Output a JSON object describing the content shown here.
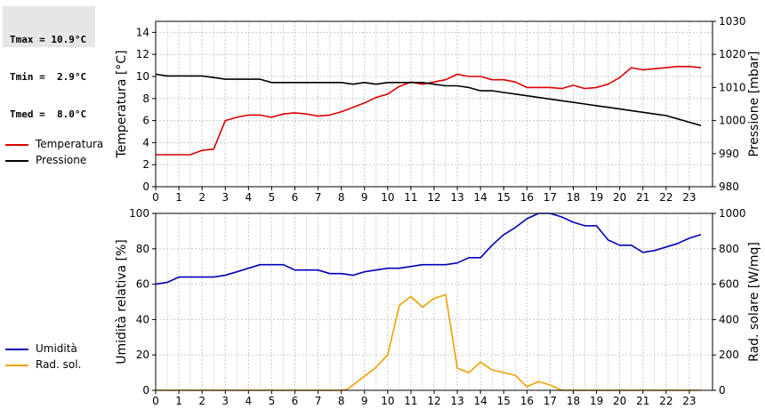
{
  "stats": {
    "tmax": "Tmax = 10.9°C",
    "tmin": "Tmin =  2.9°C",
    "tmed": "Tmed =  8.0°C"
  },
  "legend_top": [
    {
      "label": "Temperatura",
      "color": "#dd0000"
    },
    {
      "label": "Pressione",
      "color": "#000000"
    }
  ],
  "legend_bottom": [
    {
      "label": "Umidità",
      "color": "#0000bb"
    },
    {
      "label": "Rad. sol.",
      "color": "#f0a000"
    }
  ],
  "chart_data": [
    {
      "type": "line",
      "xlim": [
        0,
        24
      ],
      "x_ticks": [
        "0",
        "1",
        "2",
        "3",
        "4",
        "5",
        "6",
        "7",
        "8",
        "9",
        "10",
        "11",
        "12",
        "13",
        "14",
        "15",
        "16",
        "17",
        "18",
        "19",
        "20",
        "21",
        "22",
        "23"
      ],
      "ylabel": "Temperatura [°C]",
      "ylim": [
        0,
        15
      ],
      "y_ticks": [
        "0",
        "2",
        "4",
        "6",
        "8",
        "10",
        "12",
        "14"
      ],
      "y2label": "Pressione [mbar]",
      "y2lim": [
        980,
        1030
      ],
      "y2_ticks": [
        "980",
        "990",
        "1000",
        "1010",
        "1020",
        "1030"
      ],
      "grid": true,
      "series": [
        {
          "name": "Temperatura",
          "axis": "left",
          "color": "#dd0000",
          "x": [
            0,
            0.5,
            1,
            1.5,
            2,
            2.5,
            2.75,
            3,
            3.5,
            4,
            4.5,
            5,
            5.5,
            6,
            6.5,
            7,
            7.5,
            8,
            8.5,
            9,
            9.5,
            10,
            10.5,
            11,
            11.5,
            12,
            12.5,
            13,
            13.5,
            14,
            14.5,
            15,
            15.5,
            16,
            16.5,
            17,
            17.5,
            18,
            18.5,
            19,
            19.5,
            20,
            20.5,
            21,
            21.5,
            22,
            22.5,
            23,
            23.5
          ],
          "values": [
            2.9,
            2.9,
            2.9,
            2.9,
            3.3,
            3.4,
            4.7,
            6.0,
            6.3,
            6.5,
            6.5,
            6.3,
            6.6,
            6.7,
            6.6,
            6.4,
            6.5,
            6.8,
            7.2,
            7.6,
            8.1,
            8.4,
            9.1,
            9.5,
            9.3,
            9.5,
            9.7,
            10.2,
            10.0,
            10.0,
            9.7,
            9.7,
            9.5,
            9.0,
            9.0,
            9.0,
            8.9,
            9.2,
            8.9,
            9.0,
            9.3,
            9.9,
            10.8,
            10.6,
            10.7,
            10.8,
            10.9,
            10.9,
            10.8
          ]
        },
        {
          "name": "Pressione",
          "axis": "right",
          "color": "#000000",
          "x": [
            0,
            0.5,
            1,
            1.5,
            2,
            2.5,
            3,
            3.5,
            4,
            4.5,
            5,
            5.5,
            6,
            6.5,
            7,
            7.5,
            8,
            8.5,
            9,
            9.5,
            10,
            10.5,
            11,
            11.5,
            12,
            12.5,
            13,
            13.5,
            14,
            14.5,
            15,
            15.5,
            16,
            16.5,
            17,
            17.5,
            18,
            18.5,
            19,
            19.5,
            20,
            20.5,
            21,
            21.5,
            22,
            22.5,
            23,
            23.5
          ],
          "values": [
            1014,
            1013.5,
            1013.5,
            1013.5,
            1013.5,
            1013,
            1012.5,
            1012.5,
            1012.5,
            1012.5,
            1011.5,
            1011.5,
            1011.5,
            1011.5,
            1011.5,
            1011.5,
            1011.5,
            1011,
            1011.5,
            1011,
            1011.5,
            1011.5,
            1011.5,
            1011.5,
            1011,
            1010.5,
            1010.5,
            1010,
            1009,
            1009,
            1008.5,
            1008,
            1007.5,
            1007,
            1006.5,
            1006,
            1005.5,
            1005,
            1004.5,
            1004,
            1003.5,
            1003,
            1002.5,
            1002,
            1001.5,
            1000.5,
            999.5,
            998.5
          ]
        }
      ]
    },
    {
      "type": "line",
      "xlim": [
        0,
        24
      ],
      "x_ticks": [
        "0",
        "1",
        "2",
        "3",
        "4",
        "5",
        "6",
        "7",
        "8",
        "9",
        "10",
        "11",
        "12",
        "13",
        "14",
        "15",
        "16",
        "17",
        "18",
        "19",
        "20",
        "21",
        "22",
        "23"
      ],
      "ylabel": "Umidità relativa [%]",
      "ylim": [
        0,
        100
      ],
      "y_ticks": [
        "0",
        "20",
        "40",
        "60",
        "80",
        "100"
      ],
      "y2label": "Rad. solare [W/mq]",
      "y2lim": [
        0,
        1000
      ],
      "y2_ticks": [
        "0",
        "200",
        "400",
        "600",
        "800",
        "1000"
      ],
      "grid": true,
      "series": [
        {
          "name": "Umidità",
          "axis": "left",
          "color": "#0000bb",
          "x": [
            0,
            0.5,
            1,
            1.5,
            2,
            2.5,
            3,
            3.5,
            4,
            4.5,
            5,
            5.5,
            6,
            6.5,
            7,
            7.5,
            8,
            8.5,
            9,
            9.5,
            10,
            10.5,
            11,
            11.5,
            12,
            12.5,
            13,
            13.5,
            14,
            14.5,
            15,
            15.5,
            16,
            16.5,
            17,
            17.5,
            18,
            18.5,
            19,
            19.5,
            20,
            20.5,
            21,
            21.5,
            22,
            22.5,
            23,
            23.5
          ],
          "values": [
            60,
            61,
            64,
            64,
            64,
            64,
            65,
            67,
            69,
            71,
            71,
            71,
            68,
            68,
            68,
            66,
            66,
            65,
            67,
            68,
            69,
            69,
            70,
            71,
            71,
            71,
            72,
            75,
            75,
            82,
            88,
            92,
            97,
            100,
            100,
            98,
            95,
            93,
            93,
            85,
            82,
            82,
            78,
            79,
            81,
            83,
            86,
            88
          ]
        },
        {
          "name": "Rad. sol.",
          "axis": "right",
          "color": "#f0a000",
          "x": [
            0,
            1,
            2,
            3,
            4,
            5,
            6,
            7,
            8,
            8.25,
            8.5,
            9,
            9.5,
            10,
            10.5,
            11,
            11.5,
            12,
            12.5,
            13,
            13.5,
            14,
            14.5,
            15,
            15.5,
            16,
            16.5,
            17,
            17.5,
            18,
            19,
            20,
            21,
            22,
            23,
            23.5
          ],
          "values": [
            0,
            0,
            0,
            0,
            0,
            0,
            0,
            0,
            0,
            5,
            30,
            80,
            130,
            200,
            480,
            530,
            470,
            520,
            540,
            125,
            100,
            160,
            115,
            100,
            85,
            20,
            50,
            30,
            0,
            0,
            0,
            0,
            0,
            0,
            0,
            0
          ]
        }
      ]
    }
  ]
}
